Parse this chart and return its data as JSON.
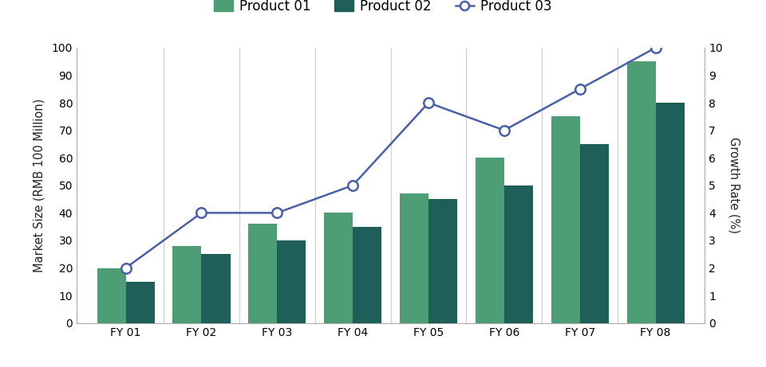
{
  "categories": [
    "FY 01",
    "FY 02",
    "FY 03",
    "FY 04",
    "FY 05",
    "FY 06",
    "FY 07",
    "FY 08"
  ],
  "product01": [
    20,
    28,
    36,
    40,
    47,
    60,
    75,
    95
  ],
  "product02": [
    15,
    25,
    30,
    35,
    45,
    50,
    65,
    80
  ],
  "product03": [
    2.0,
    4.0,
    4.0,
    5.0,
    8.0,
    7.0,
    8.5,
    10.0
  ],
  "bar_color01": "#4d9e75",
  "bar_color02": "#1e5f5a",
  "line_color": "#4a5faa",
  "line_marker": "o",
  "ylabel_left": "Market Size (RMB 100 Million)",
  "ylabel_right": "Growth Rate (%)",
  "ylim_left": [
    0,
    100
  ],
  "ylim_right": [
    0,
    10
  ],
  "yticks_left": [
    0,
    10,
    20,
    30,
    40,
    50,
    60,
    70,
    80,
    90,
    100
  ],
  "yticks_right": [
    0,
    1,
    2,
    3,
    4,
    5,
    6,
    7,
    8,
    9,
    10
  ],
  "legend_labels": [
    "Product 01",
    "Product 02",
    "Product 03"
  ],
  "bar_width": 0.38,
  "background_color": "#ffffff",
  "vgrid_color": "#d0d0d0",
  "spine_color": "#aaaaaa",
  "axis_fontsize": 10.5,
  "legend_fontsize": 12,
  "tick_fontsize": 10
}
